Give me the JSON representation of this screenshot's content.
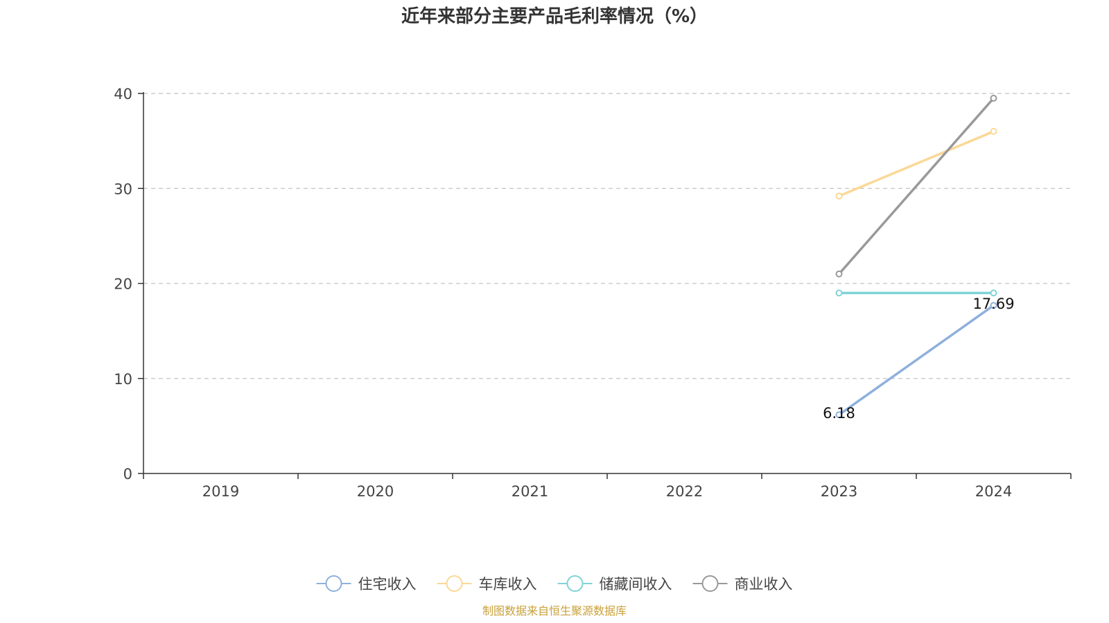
{
  "chart_data": {
    "type": "line",
    "title": "近年来部分主要产品毛利率情况（%）",
    "categories": [
      "2019",
      "2020",
      "2021",
      "2022",
      "2023",
      "2024"
    ],
    "ylim": [
      0,
      40
    ],
    "yticks": [
      "0",
      "10",
      "20",
      "30",
      "40"
    ],
    "grid": true,
    "legend_position": "bottom",
    "series": [
      {
        "name": "住宅收入",
        "color": "#8eb0dc",
        "values": [
          null,
          null,
          null,
          null,
          6.18,
          17.69
        ],
        "labels": [
          null,
          null,
          null,
          null,
          "6.18",
          "17.69"
        ]
      },
      {
        "name": "车库收入",
        "color": "#fbd896",
        "values": [
          null,
          null,
          null,
          null,
          29.2,
          36.0
        ],
        "labels": [
          null,
          null,
          null,
          null,
          null,
          null
        ]
      },
      {
        "name": "储藏间收入",
        "color": "#7fd3d6",
        "values": [
          null,
          null,
          null,
          null,
          19.0,
          19.0
        ],
        "labels": [
          null,
          null,
          null,
          null,
          null,
          null
        ]
      },
      {
        "name": "商业收入",
        "color": "#999999",
        "values": [
          null,
          null,
          null,
          null,
          21.0,
          39.5
        ],
        "labels": [
          null,
          null,
          null,
          null,
          null,
          null
        ]
      }
    ]
  },
  "source": {
    "text": "制图数据来自恒生聚源数据库",
    "color": "#c9a13a"
  }
}
